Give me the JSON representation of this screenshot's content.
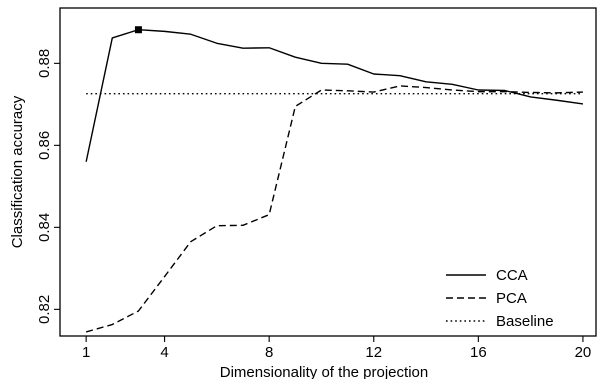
{
  "chart_data": {
    "type": "line",
    "title": "",
    "xlabel": "Dimensionality of the projection",
    "ylabel": "Classification accuracy",
    "xlim": [
      0,
      20.5
    ],
    "ylim": [
      0.8135,
      0.8935
    ],
    "x_ticks": [
      1,
      4,
      8,
      12,
      16,
      20
    ],
    "x_tick_labels": [
      "1",
      "4",
      "8",
      "12",
      "16",
      "20"
    ],
    "y_ticks": [
      0.82,
      0.84,
      0.86,
      0.88
    ],
    "y_tick_labels": [
      "0.82",
      "0.84",
      "0.86",
      "0.88"
    ],
    "legend_position": "bottom-right",
    "series": [
      {
        "name": "CCA",
        "line_style": "solid",
        "color": "#000000",
        "x": [
          1,
          2,
          3,
          4,
          5,
          6,
          7,
          8,
          9,
          10,
          11,
          12,
          13,
          14,
          15,
          16,
          17,
          18,
          19,
          20
        ],
        "values": [
          0.856,
          0.8862,
          0.8882,
          0.8878,
          0.8871,
          0.8849,
          0.8837,
          0.8838,
          0.8815,
          0.88,
          0.8798,
          0.8774,
          0.877,
          0.8755,
          0.8749,
          0.8735,
          0.8734,
          0.8718,
          0.871,
          0.8701
        ],
        "highlight": {
          "x": 3,
          "y": 0.8882,
          "marker": "square"
        }
      },
      {
        "name": "PCA",
        "line_style": "dashed",
        "color": "#000000",
        "x": [
          1,
          2,
          3,
          4,
          5,
          6,
          7,
          8,
          9,
          10,
          11,
          12,
          13,
          14,
          15,
          16,
          17,
          18,
          19,
          20
        ],
        "values": [
          0.8145,
          0.8163,
          0.8196,
          0.828,
          0.8365,
          0.8404,
          0.8405,
          0.8431,
          0.8695,
          0.8735,
          0.8733,
          0.873,
          0.8745,
          0.8741,
          0.8735,
          0.8731,
          0.8731,
          0.8729,
          0.8728,
          0.873
        ]
      },
      {
        "name": "Baseline",
        "line_style": "dotted",
        "color": "#000000",
        "x": [
          1,
          20
        ],
        "values": [
          0.8726,
          0.8726
        ]
      }
    ]
  }
}
